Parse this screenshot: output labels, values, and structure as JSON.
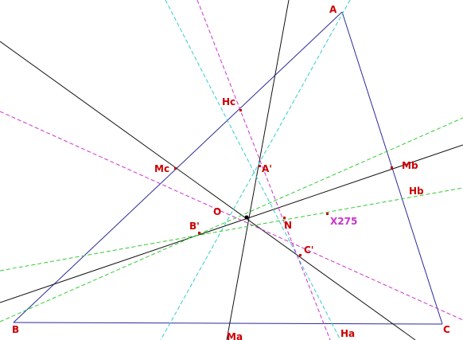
{
  "points": [
    {
      "label": "A"
    },
    {
      "label": "B"
    },
    {
      "label": "C"
    },
    {
      "label": "Hc"
    },
    {
      "label": "Mc"
    },
    {
      "label": "A'"
    },
    {
      "label": "O"
    },
    {
      "label": "B'"
    },
    {
      "label": "N"
    },
    {
      "label": "C'"
    },
    {
      "label": "Mb"
    },
    {
      "label": "Hb"
    },
    {
      "label": "X275"
    },
    {
      "label": "Ma"
    },
    {
      "label": "Ha"
    }
  ]
}
